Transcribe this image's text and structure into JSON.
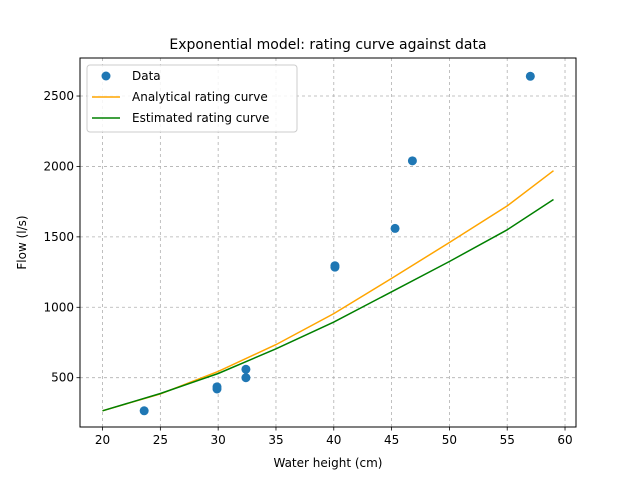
{
  "chart_data": {
    "type": "scatter",
    "title": "Exponential model: rating curve against data",
    "xlabel": "Water height (cm)",
    "ylabel": "Flow (l/s)",
    "xlim": [
      18.05,
      60.95
    ],
    "ylim": [
      150,
      2770
    ],
    "xticks": [
      20,
      25,
      30,
      35,
      40,
      45,
      50,
      55,
      60
    ],
    "yticks": [
      500,
      1000,
      1500,
      2000,
      2500
    ],
    "grid": true,
    "legend_position": "top-left",
    "series": [
      {
        "name": "Data",
        "kind": "scatter",
        "color": "#1f77b4",
        "points": [
          [
            23.6,
            265
          ],
          [
            29.9,
            420
          ],
          [
            29.9,
            435
          ],
          [
            32.4,
            500
          ],
          [
            32.4,
            560
          ],
          [
            40.1,
            1285
          ],
          [
            40.1,
            1295
          ],
          [
            45.3,
            1560
          ],
          [
            46.8,
            2040
          ],
          [
            57.0,
            2640
          ]
        ]
      },
      {
        "name": "Analytical rating curve",
        "kind": "line",
        "color": "#ffa500",
        "points": [
          [
            20,
            265
          ],
          [
            25,
            385
          ],
          [
            30,
            545
          ],
          [
            35,
            735
          ],
          [
            40,
            955
          ],
          [
            45,
            1205
          ],
          [
            50,
            1460
          ],
          [
            55,
            1720
          ],
          [
            59,
            1970
          ]
        ]
      },
      {
        "name": "Estimated rating curve",
        "kind": "line",
        "color": "#008000",
        "points": [
          [
            20,
            265
          ],
          [
            25,
            388
          ],
          [
            30,
            530
          ],
          [
            35,
            705
          ],
          [
            40,
            895
          ],
          [
            45,
            1110
          ],
          [
            50,
            1325
          ],
          [
            55,
            1550
          ],
          [
            59,
            1765
          ]
        ]
      }
    ]
  }
}
